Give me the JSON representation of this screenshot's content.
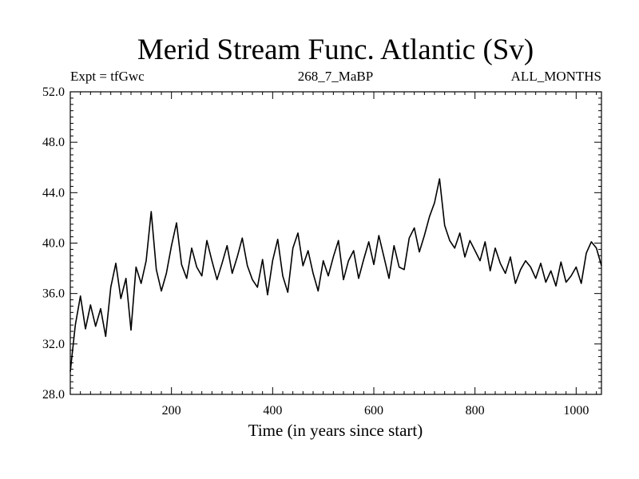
{
  "chart_data": {
    "type": "line",
    "title": "Merid Stream Func. Atlantic (Sv)",
    "subtitle_left": "Expt = tfGwc",
    "subtitle_center": "268_7_MaBP",
    "subtitle_right": "ALL_MONTHS",
    "xlabel": "Time (in years since start)",
    "ylabel": "",
    "xlim": [
      0,
      1050
    ],
    "ylim": [
      28,
      52
    ],
    "xticks": [
      200,
      400,
      600,
      800,
      1000
    ],
    "xtick_labels": [
      "200",
      "400",
      "600",
      "800",
      "1000"
    ],
    "yticks": [
      28,
      32,
      36,
      40,
      44,
      48,
      52
    ],
    "ytick_labels": [
      "28.0",
      "32.0",
      "36.0",
      "40.0",
      "44.0",
      "48.0",
      "52.0"
    ],
    "grid": false,
    "line_color": "#000000",
    "series": [
      {
        "x": [
          0,
          10,
          20,
          30,
          40,
          50,
          60,
          70,
          80,
          90,
          100,
          110,
          120,
          130,
          140,
          150,
          160,
          170,
          180,
          190,
          200,
          210,
          220,
          230,
          240,
          250,
          260,
          270,
          280,
          290,
          300,
          310,
          320,
          330,
          340,
          350,
          360,
          370,
          380,
          390,
          400,
          410,
          420,
          430,
          440,
          450,
          460,
          470,
          480,
          490,
          500,
          510,
          520,
          530,
          540,
          550,
          560,
          570,
          580,
          590,
          600,
          610,
          620,
          630,
          640,
          650,
          660,
          670,
          680,
          690,
          700,
          710,
          720,
          730,
          740,
          750,
          760,
          770,
          780,
          790,
          800,
          810,
          820,
          830,
          840,
          850,
          860,
          870,
          880,
          890,
          900,
          910,
          920,
          930,
          940,
          950,
          960,
          970,
          980,
          990,
          1000,
          1010,
          1020,
          1030,
          1040,
          1050
        ],
        "values": [
          29.8,
          33.5,
          35.8,
          33.2,
          35.1,
          33.4,
          34.8,
          32.6,
          36.5,
          38.4,
          35.6,
          37.2,
          33.1,
          38.1,
          36.8,
          38.6,
          42.5,
          37.9,
          36.2,
          37.6,
          39.8,
          41.6,
          38.3,
          37.2,
          39.6,
          38.1,
          37.4,
          40.2,
          38.6,
          37.1,
          38.4,
          39.8,
          37.6,
          38.9,
          40.4,
          38.2,
          37.1,
          36.5,
          38.7,
          35.9,
          38.6,
          40.3,
          37.4,
          36.1,
          39.6,
          40.8,
          38.2,
          39.4,
          37.6,
          36.2,
          38.6,
          37.4,
          38.9,
          40.2,
          37.1,
          38.6,
          39.4,
          37.2,
          38.7,
          40.1,
          38.3,
          40.6,
          38.9,
          37.2,
          39.8,
          38.1,
          37.9,
          40.4,
          41.2,
          39.3,
          40.6,
          42.1,
          43.2,
          45.1,
          41.4,
          40.2,
          39.6,
          40.8,
          38.9,
          40.2,
          39.4,
          38.6,
          40.1,
          37.8,
          39.6,
          38.4,
          37.6,
          38.9,
          36.8,
          37.9,
          38.6,
          38.1,
          37.2,
          38.4,
          36.9,
          37.8,
          36.6,
          38.5,
          36.9,
          37.4,
          38.1,
          36.8,
          39.2,
          40.1,
          39.6,
          38.2
        ]
      }
    ]
  }
}
